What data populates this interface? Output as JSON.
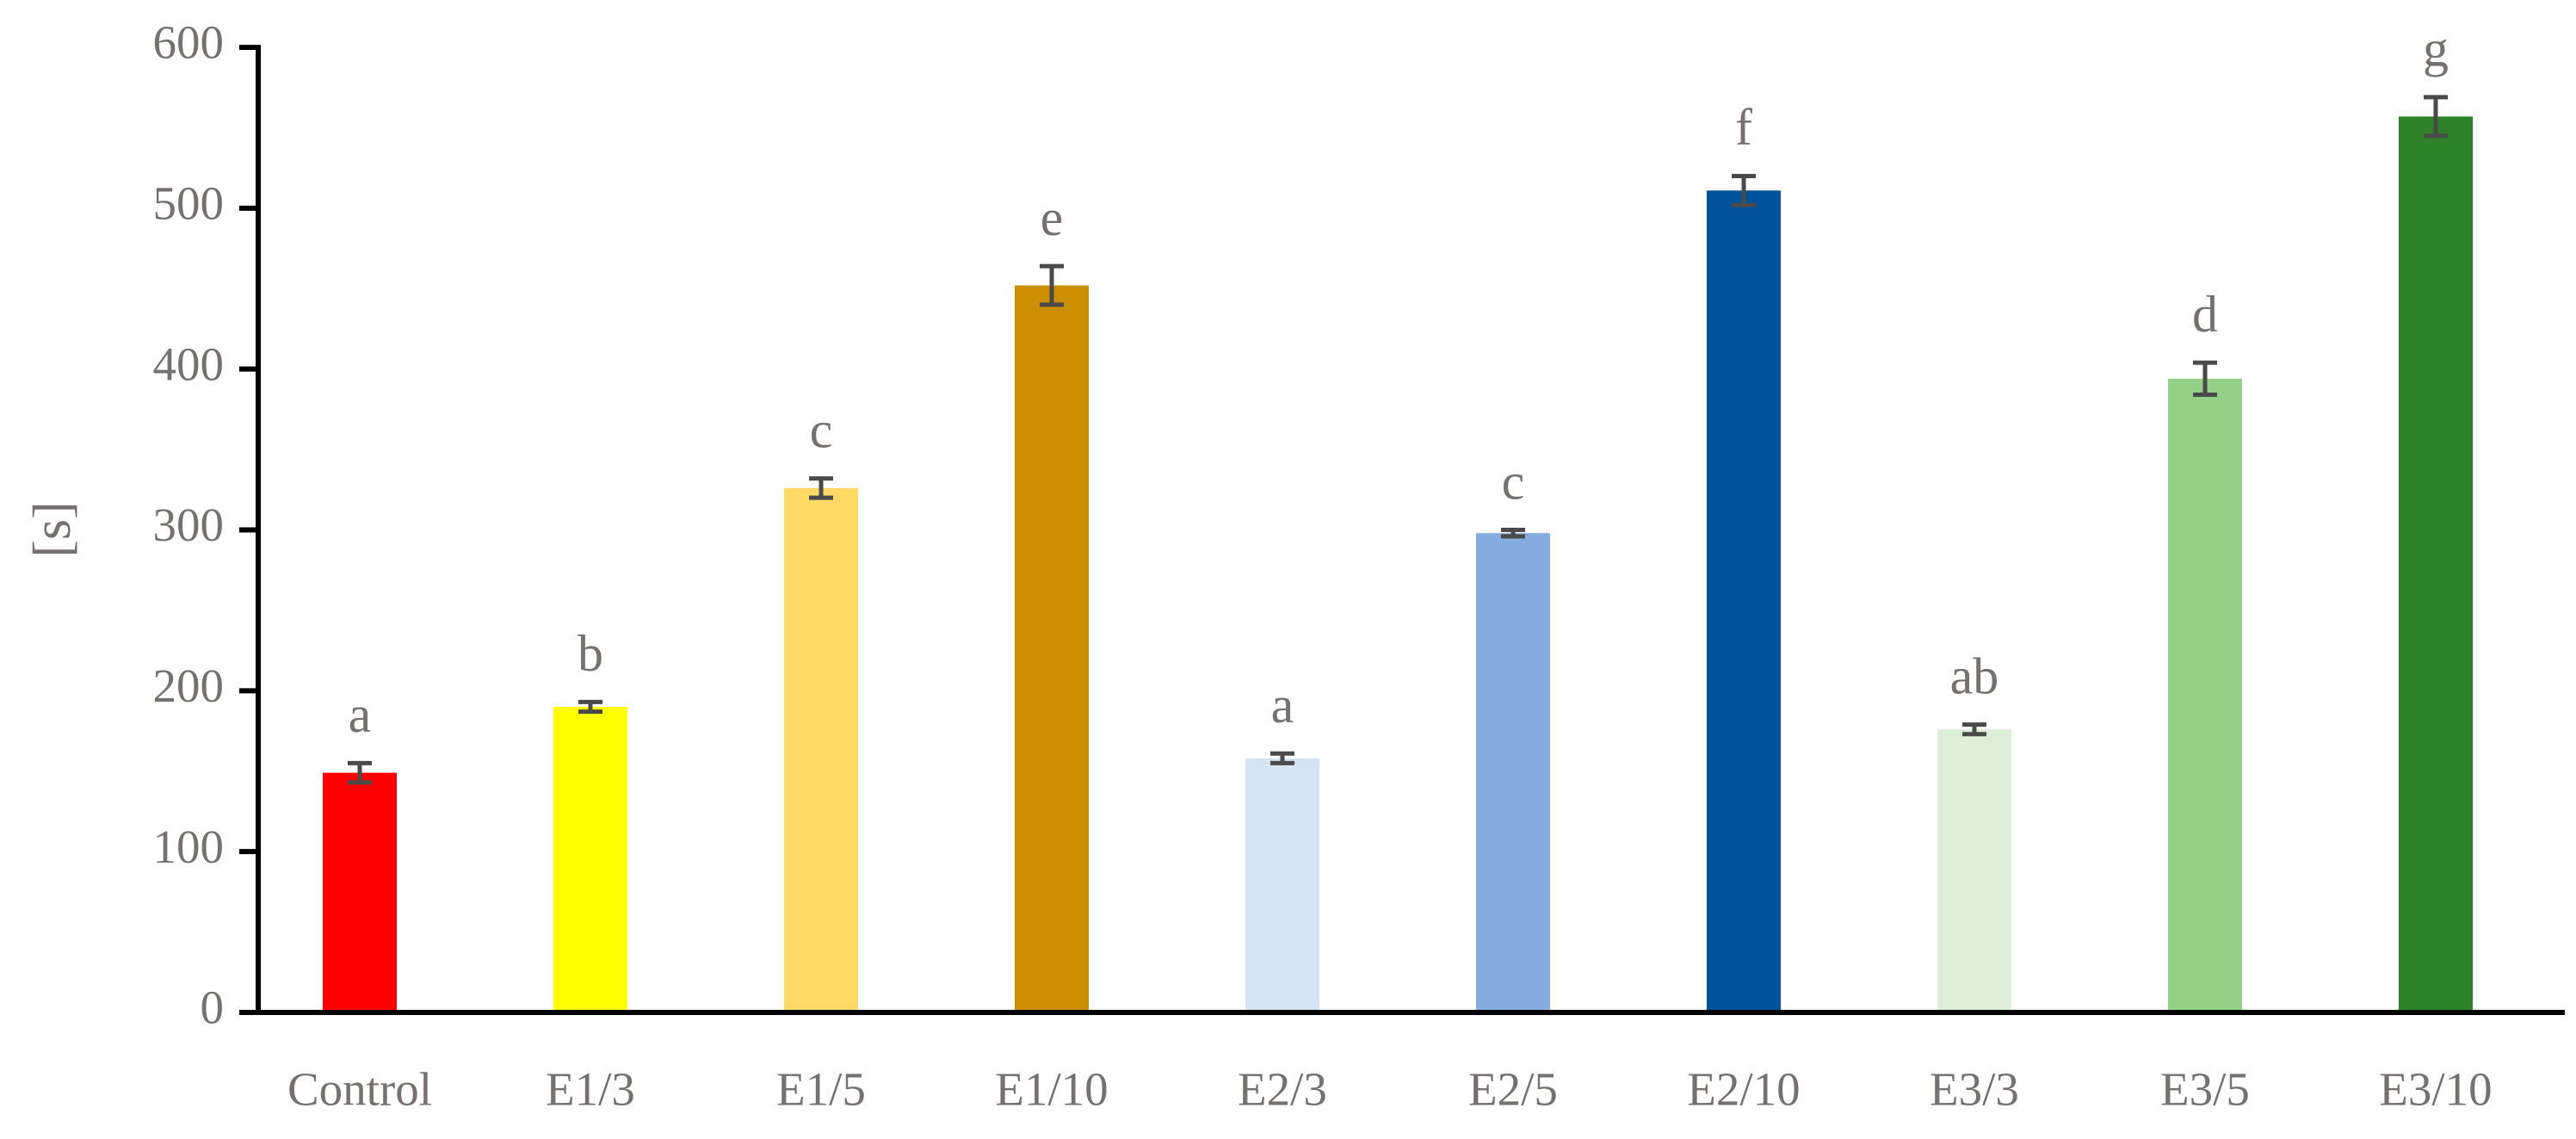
{
  "chart_data": {
    "type": "bar",
    "y_label": "[s]",
    "categories": [
      "Control",
      "E1/3",
      "E1/5",
      "E1/10",
      "E2/3",
      "E2/5",
      "E2/10",
      "E3/3",
      "E3/5",
      "E3/10"
    ],
    "values": [
      149,
      190,
      326,
      452,
      158,
      298,
      511,
      176,
      394,
      557
    ],
    "errors": [
      6,
      3,
      6,
      12,
      3,
      2,
      9,
      3,
      10,
      12
    ],
    "annotations": [
      "a",
      "b",
      "c",
      "e",
      "a",
      "c",
      "f",
      "ab",
      "d",
      "g"
    ],
    "colors": [
      "#ff0000",
      "#ffff00",
      "#ffd966",
      "#cc8f00",
      "#d6e3f2",
      "#84acde",
      "#00529a",
      "#ddefd9",
      "#95d087",
      "#2e832a"
    ],
    "ylim": [
      0,
      600
    ],
    "yticks": [
      0,
      100,
      200,
      300,
      400,
      500,
      600
    ]
  }
}
